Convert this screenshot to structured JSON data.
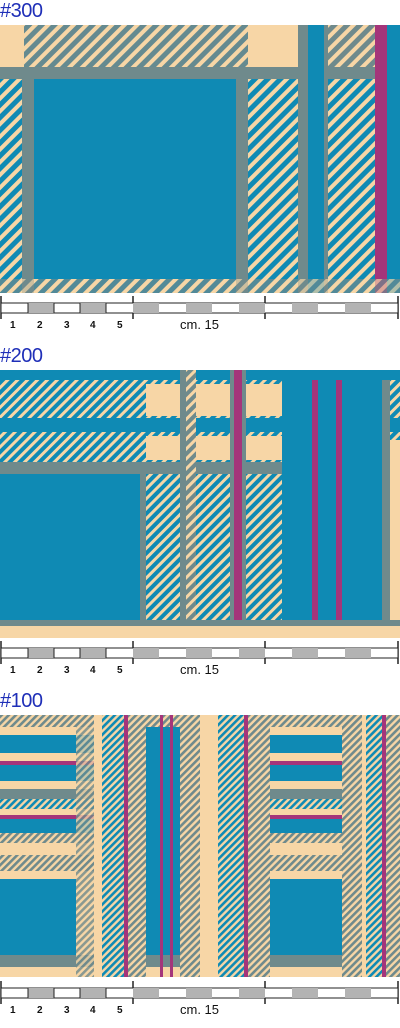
{
  "colors": {
    "sand": "#f7d6a6",
    "teal": "#0f8ab4",
    "grey": "#6f8a8c",
    "magenta": "#a4357a",
    "label_blue": "#1f2fb8"
  },
  "samples": [
    {
      "label": "#300",
      "ruler": {
        "ticks": [
          "1",
          "2",
          "3",
          "4",
          "5"
        ],
        "unit_label": "cm. 15"
      }
    },
    {
      "label": "#200",
      "ruler": {
        "ticks": [
          "1",
          "2",
          "3",
          "4",
          "5"
        ],
        "unit_label": "cm. 15"
      }
    },
    {
      "label": "#100",
      "ruler": {
        "ticks": [
          "1",
          "2",
          "3",
          "4",
          "5"
        ],
        "unit_label": "cm. 15"
      }
    }
  ]
}
